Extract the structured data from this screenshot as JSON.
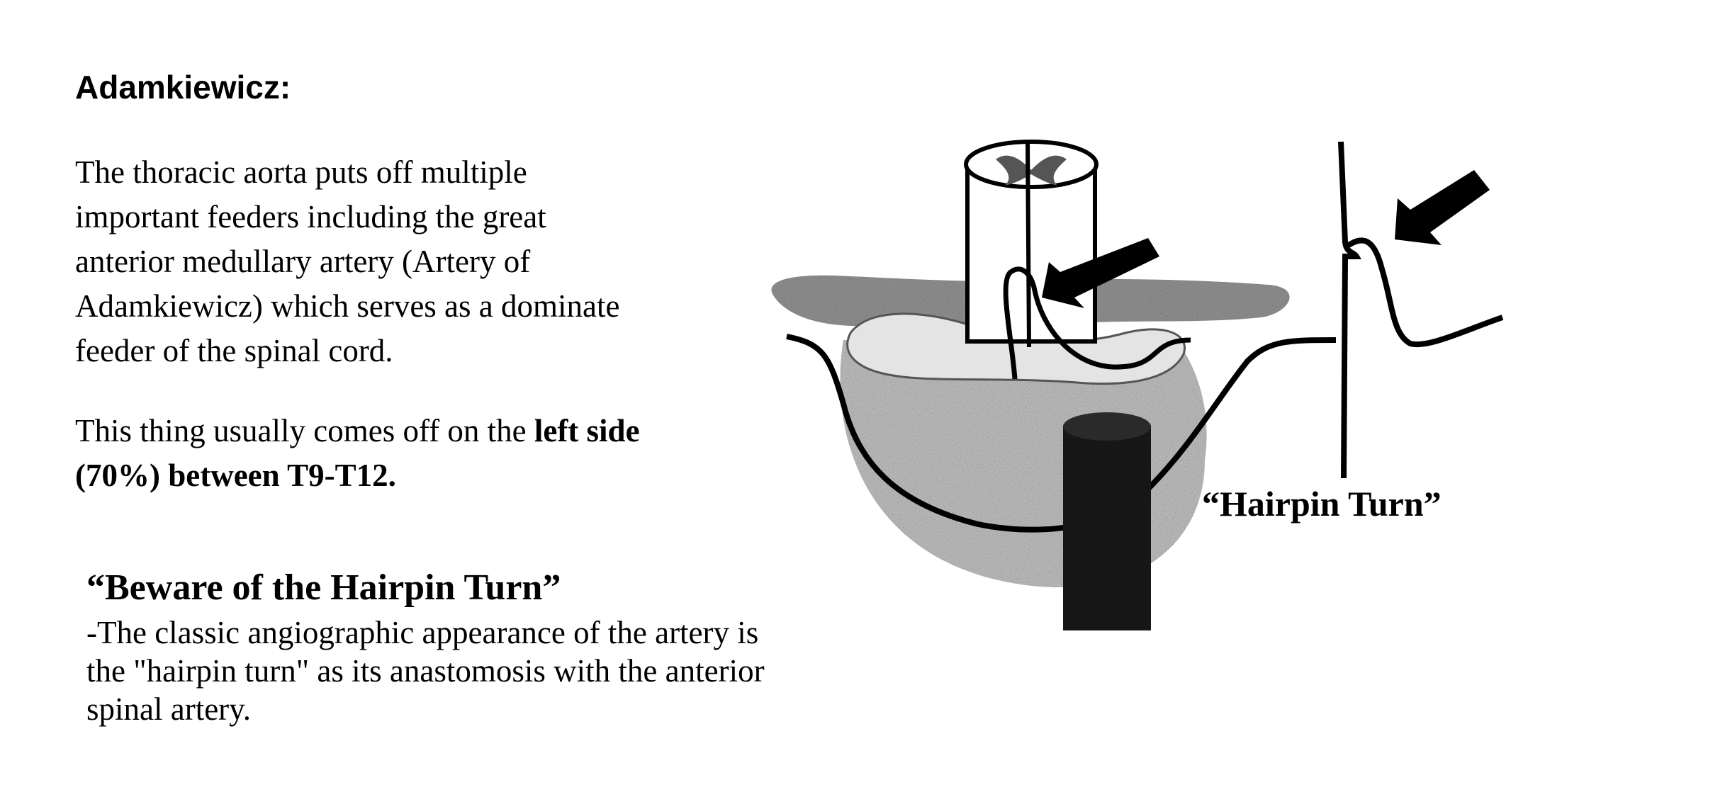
{
  "heading": "Adamkiewicz:",
  "intro": {
    "lines": [
      "The thoracic aorta puts off multiple",
      "important feeders including the great",
      "anterior medullary artery (Artery of",
      "Adamkiewicz) which serves as a dominate",
      "feeder of the spinal cord."
    ]
  },
  "location": {
    "prefix": "This thing usually comes off on the ",
    "bold_1": "left side",
    "bold_2": "(70%) between T9-T12."
  },
  "callout": {
    "title": "“Beware of the Hairpin Turn”",
    "lines": [
      "-The classic angiographic appearance of the artery is",
      "the \"hairpin turn\" as its anastomosis with the anterior",
      "spinal artery."
    ]
  },
  "figure": {
    "label": "“Hairpin Turn”"
  }
}
